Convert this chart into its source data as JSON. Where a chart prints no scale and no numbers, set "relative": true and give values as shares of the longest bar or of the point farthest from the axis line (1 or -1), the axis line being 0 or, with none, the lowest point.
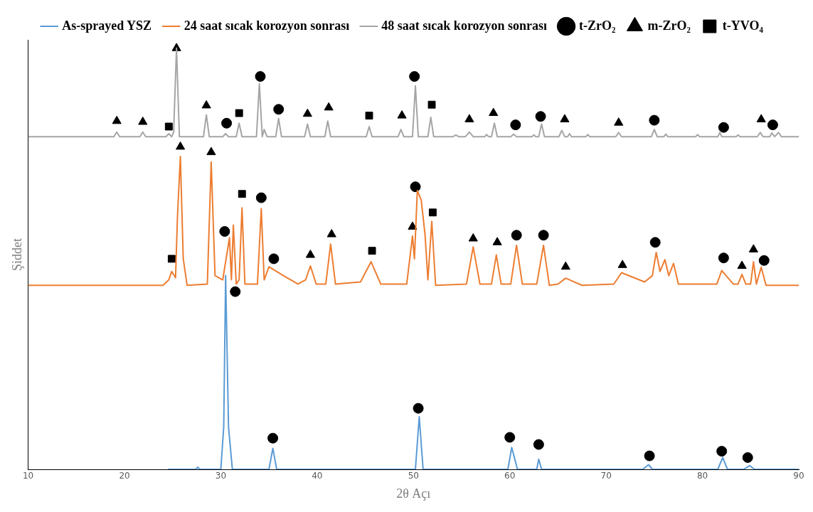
{
  "chart_data": {
    "type": "line",
    "xlabel": "2θ Açı",
    "ylabel": "Şiddet",
    "relative": true,
    "xlim": [
      10,
      90
    ],
    "xticks": [
      10,
      20,
      30,
      40,
      50,
      60,
      70,
      80,
      90
    ],
    "grid": false,
    "legend": "top",
    "line_style": "solid",
    "marker": "none",
    "series": [
      {
        "name": "As-sprayed YSZ",
        "color": "#5b9bd5",
        "x": [
          24.5,
          27.4,
          27.6,
          27.8,
          30,
          30.3,
          30.5,
          30.8,
          31.2,
          35,
          35.4,
          35.8,
          50.2,
          50.6,
          51,
          59.8,
          60.2,
          60.8,
          62.8,
          63,
          63.3,
          73.8,
          74.4,
          74.8,
          81.6,
          82.1,
          82.6,
          84.3,
          84.9,
          85.4,
          90
        ],
        "values": [
          0,
          0,
          0.005,
          0,
          0,
          0.1,
          0.46,
          0.1,
          0,
          0,
          0.05,
          0,
          0,
          0.125,
          0,
          0,
          0.052,
          0,
          0,
          0.024,
          0,
          0,
          0.011,
          0,
          0,
          0.028,
          0,
          0,
          0.009,
          0,
          0
        ]
      },
      {
        "name": "24 saat sıcak korozyon sonrası",
        "color": "#ed7d31",
        "x": [
          10,
          24,
          24.6,
          24.9,
          25.3,
          25.5,
          25.8,
          26.1,
          26.5,
          28.6,
          29,
          29.4,
          30.2,
          30.9,
          31.1,
          31.3,
          31.6,
          31.9,
          32.2,
          32.5,
          33.8,
          34.2,
          34.5,
          35,
          36.5,
          38,
          38.8,
          39.3,
          39.9,
          40.9,
          41.4,
          41.9,
          44.5,
          45.6,
          46.6,
          49.3,
          49.9,
          50.1,
          50.4,
          50.8,
          51.2,
          51.5,
          51.9,
          52.3,
          55.5,
          56.2,
          56.9,
          58.1,
          58.6,
          59.1,
          60.1,
          60.7,
          61.3,
          62.8,
          63.5,
          64.1,
          65,
          65.8,
          67.5,
          70.8,
          71.6,
          74,
          74.8,
          75.2,
          75.6,
          76.1,
          76.5,
          77,
          77.5,
          81.5,
          82,
          83.2,
          83.7,
          84.1,
          84.5,
          85,
          85.3,
          85.6,
          86.1,
          86.6,
          90
        ],
        "values": [
          0.437,
          0.437,
          0.45,
          0.47,
          0.455,
          0.6,
          0.743,
          0.5,
          0.437,
          0.44,
          0.73,
          0.46,
          0.45,
          0.55,
          0.45,
          0.58,
          0.44,
          0.45,
          0.621,
          0.44,
          0.44,
          0.619,
          0.45,
          0.481,
          0.46,
          0.44,
          0.45,
          0.483,
          0.44,
          0.44,
          0.535,
          0.44,
          0.445,
          0.493,
          0.44,
          0.44,
          0.554,
          0.5,
          0.662,
          0.64,
          0.558,
          0.45,
          0.589,
          0.437,
          0.44,
          0.528,
          0.44,
          0.44,
          0.509,
          0.44,
          0.44,
          0.532,
          0.44,
          0.44,
          0.532,
          0.437,
          0.44,
          0.454,
          0.437,
          0.44,
          0.467,
          0.445,
          0.46,
          0.515,
          0.47,
          0.498,
          0.46,
          0.489,
          0.44,
          0.44,
          0.472,
          0.44,
          0.44,
          0.463,
          0.44,
          0.44,
          0.493,
          0.44,
          0.48,
          0.437,
          0.437
        ]
      },
      {
        "name": "48 saat sıcak korozyon sonrası",
        "color": "#a5a5a5",
        "x": [
          10,
          18.9,
          19.2,
          19.5,
          21.6,
          21.9,
          22.2,
          24.3,
          24.6,
          24.9,
          25.1,
          25.4,
          25.7,
          28.2,
          28.5,
          28.8,
          30.2,
          30.5,
          30.8,
          31.6,
          31.9,
          32.2,
          33.7,
          34,
          34.3,
          34.5,
          34.8,
          35.7,
          36,
          36.3,
          38.7,
          39,
          39.3,
          40.8,
          41.1,
          41.4,
          45.1,
          45.4,
          45.7,
          48.4,
          48.7,
          49,
          49.9,
          50.2,
          50.5,
          51.5,
          51.8,
          52.1,
          54.1,
          54.4,
          54.7,
          55.4,
          55.8,
          56.2,
          57.4,
          57.6,
          57.8,
          58.1,
          58.4,
          58.7,
          60.1,
          60.4,
          60.7,
          62.3,
          62.5,
          62.7,
          63,
          63.3,
          63.6,
          65.1,
          65.4,
          65.7,
          66,
          66.2,
          66.4,
          67.9,
          68.1,
          68.3,
          71,
          71.3,
          71.6,
          74.7,
          75,
          75.3,
          76,
          76.2,
          76.4,
          79.3,
          79.5,
          79.7,
          81.6,
          81.8,
          82,
          83.5,
          83.7,
          83.9,
          85.7,
          86,
          86.3,
          87,
          87.2,
          87.5,
          87.9,
          88.2,
          90
        ],
        "values": [
          0.79,
          0.79,
          0.801,
          0.79,
          0.79,
          0.801,
          0.79,
          0.79,
          0.797,
          0.79,
          0.8,
          1,
          0.79,
          0.79,
          0.842,
          0.79,
          0.79,
          0.797,
          0.79,
          0.79,
          0.822,
          0.79,
          0.79,
          0.916,
          0.79,
          0.807,
          0.79,
          0.79,
          0.833,
          0.79,
          0.79,
          0.82,
          0.79,
          0.79,
          0.827,
          0.79,
          0.79,
          0.814,
          0.79,
          0.79,
          0.807,
          0.79,
          0.79,
          0.911,
          0.79,
          0.79,
          0.836,
          0.79,
          0.79,
          0.794,
          0.79,
          0.79,
          0.801,
          0.79,
          0.79,
          0.795,
          0.79,
          0.79,
          0.822,
          0.79,
          0.79,
          0.796,
          0.79,
          0.79,
          0.794,
          0.79,
          0.79,
          0.82,
          0.79,
          0.79,
          0.805,
          0.79,
          0.79,
          0.797,
          0.79,
          0.79,
          0.795,
          0.79,
          0.79,
          0.8,
          0.79,
          0.79,
          0.807,
          0.79,
          0.79,
          0.796,
          0.79,
          0.79,
          0.795,
          0.79,
          0.79,
          0.8,
          0.79,
          0.79,
          0.794,
          0.79,
          0.79,
          0.8,
          0.79,
          0.79,
          0.799,
          0.79,
          0.8,
          0.79,
          0.79
        ]
      },
      {
        "name": "t-ZrO₂",
        "type": "scatter",
        "marker": "circle",
        "color": "#000000",
        "x": [
          30.6,
          34.1,
          36.0,
          50.1,
          60.6,
          63.2,
          75.0,
          82.2,
          87.3,
          30.4,
          34.2,
          35.5,
          50.2,
          60.7,
          63.5,
          75.1,
          82.2,
          86.4,
          31.5,
          35.4,
          50.5,
          60.0,
          63.0,
          74.5,
          82.0,
          84.7
        ],
        "values": [
          0.822,
          0.933,
          0.855,
          0.933,
          0.818,
          0.838,
          0.829,
          0.812,
          0.818,
          0.565,
          0.645,
          0.5,
          0.671,
          0.556,
          0.556,
          0.539,
          0.502,
          0.496,
          0.422,
          0.074,
          0.145,
          0.076,
          0.059,
          0.032,
          0.043,
          0.028
        ]
      },
      {
        "name": "m-ZrO₂",
        "type": "scatter",
        "marker": "triangle",
        "color": "#000000",
        "x": [
          19.2,
          21.9,
          25.4,
          28.5,
          39.0,
          41.2,
          48.8,
          55.8,
          58.3,
          65.7,
          71.3,
          86.1,
          25.8,
          29.0,
          39.3,
          41.5,
          49.9,
          56.2,
          58.7,
          65.8,
          71.7,
          84.1,
          85.3
        ],
        "values": [
          0.827,
          0.825,
          1.0,
          0.864,
          0.844,
          0.859,
          0.84,
          0.831,
          0.846,
          0.831,
          0.823,
          0.831,
          0.766,
          0.753,
          0.509,
          0.558,
          0.576,
          0.548,
          0.539,
          0.481,
          0.485,
          0.483,
          0.522
        ]
      },
      {
        "name": "t-YVO₄",
        "type": "scatter",
        "marker": "square",
        "color": "#000000",
        "x": [
          24.6,
          31.9,
          45.4,
          51.9,
          24.9,
          32.2,
          45.7,
          52.0
        ],
        "values": [
          0.814,
          0.846,
          0.84,
          0.866,
          0.5,
          0.654,
          0.519,
          0.61
        ]
      }
    ]
  }
}
